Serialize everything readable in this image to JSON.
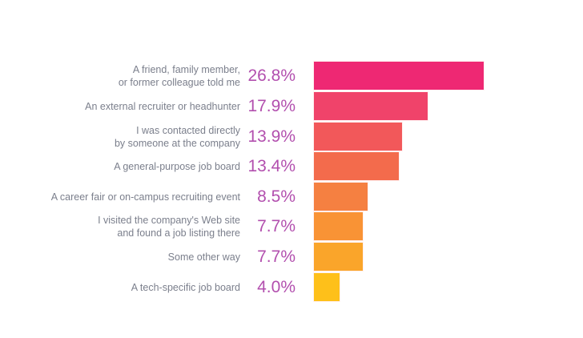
{
  "chart_data": {
    "type": "bar",
    "orientation": "horizontal",
    "categories": [
      "A friend, family member,\nor former colleague told me",
      "An external recruiter or headhunter",
      "I was contacted directly\nby someone at the company",
      "A general-purpose job board",
      "A career fair or on-campus recruiting event",
      "I visited the company's Web site\nand found a job listing there",
      "Some other way",
      "A tech-specific job board"
    ],
    "values": [
      26.8,
      17.9,
      13.9,
      13.4,
      8.5,
      7.7,
      7.7,
      4.0
    ],
    "value_labels": [
      "26.8%",
      "17.9%",
      "13.9%",
      "13.4%",
      "8.5%",
      "7.7%",
      "7.7%",
      "4.0%"
    ],
    "colors": [
      "#ee2873",
      "#f0436a",
      "#f2585a",
      "#f36b4c",
      "#f58041",
      "#f99335",
      "#faa52a",
      "#fec01a"
    ],
    "xlim": [
      0,
      26.8
    ],
    "grid": false,
    "title": "",
    "xlabel": "",
    "ylabel": ""
  }
}
